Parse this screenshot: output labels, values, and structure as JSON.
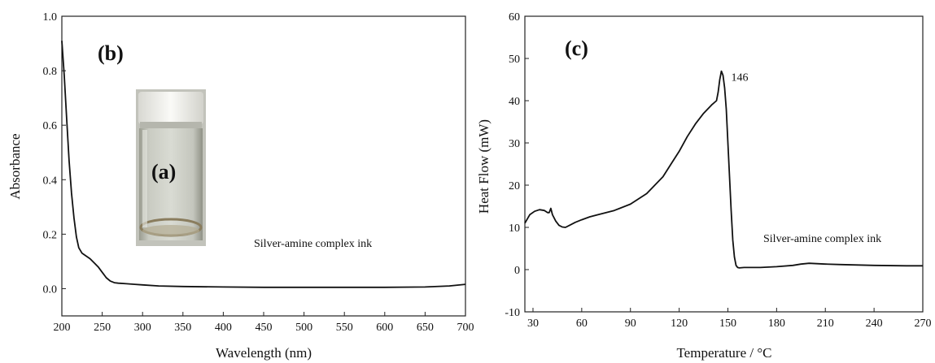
{
  "chart_data": [
    {
      "type": "line",
      "panel_label": "(b)",
      "inset_label": "(a)",
      "xlabel": "Wavelength (nm)",
      "ylabel": "Absorbance",
      "xlim": [
        200,
        700
      ],
      "ylim": [
        -0.1,
        1.0
      ],
      "x_ticks": [
        200,
        250,
        300,
        350,
        400,
        450,
        500,
        550,
        600,
        650,
        700
      ],
      "x_tick_labels": [
        "200",
        "250",
        "300",
        "350",
        "400",
        "450",
        "500",
        "550",
        "600",
        "650",
        "700"
      ],
      "y_ticks": [
        0.0,
        0.2,
        0.4,
        0.6,
        0.8,
        1.0
      ],
      "y_tick_labels": [
        "0.0",
        "0.2",
        "0.4",
        "0.6",
        "0.8",
        "1.0"
      ],
      "annotation": "Silver-amine complex ink",
      "series": [
        {
          "x": [
            200,
            203,
            206,
            209,
            212,
            215,
            218,
            221,
            225,
            230,
            235,
            240,
            245,
            250,
            255,
            260,
            265,
            270,
            280,
            290,
            300,
            320,
            350,
            400,
            450,
            500,
            550,
            600,
            650,
            680,
            700
          ],
          "y": [
            0.91,
            0.78,
            0.62,
            0.47,
            0.35,
            0.26,
            0.19,
            0.15,
            0.13,
            0.12,
            0.11,
            0.095,
            0.08,
            0.06,
            0.04,
            0.028,
            0.022,
            0.02,
            0.018,
            0.016,
            0.014,
            0.01,
            0.008,
            0.006,
            0.005,
            0.005,
            0.005,
            0.005,
            0.006,
            0.01,
            0.016
          ]
        }
      ]
    },
    {
      "type": "line",
      "panel_label": "(c)",
      "xlabel": "Temperature / °C",
      "ylabel": "Heat Flow (mW)",
      "xlim": [
        25,
        270
      ],
      "ylim": [
        -10,
        60
      ],
      "x_ticks": [
        30,
        60,
        90,
        120,
        150,
        180,
        210,
        240,
        270
      ],
      "x_tick_labels": [
        "30",
        "60",
        "90",
        "120",
        "150",
        "180",
        "210",
        "240",
        "270"
      ],
      "y_ticks": [
        -10,
        0,
        10,
        20,
        30,
        40,
        50,
        60
      ],
      "y_tick_labels": [
        "-10",
        "0",
        "10",
        "20",
        "30",
        "40",
        "50",
        "60"
      ],
      "peak_label": "146",
      "peak_x": 146,
      "peak_y": 47,
      "annotation": "Silver-amine complex ink",
      "series": [
        {
          "x": [
            25,
            28,
            31,
            34,
            37,
            39,
            40,
            41,
            42,
            44,
            46,
            48,
            50,
            53,
            56,
            60,
            65,
            70,
            80,
            90,
            100,
            110,
            115,
            120,
            125,
            130,
            135,
            140,
            143,
            144,
            145,
            146,
            147,
            148,
            149,
            150,
            151,
            152,
            153,
            154,
            155,
            156,
            157,
            160,
            170,
            180,
            190,
            195,
            200,
            210,
            220,
            240,
            260,
            270
          ],
          "y": [
            11.0,
            13.0,
            13.8,
            14.2,
            14.0,
            13.5,
            13.5,
            14.5,
            13.0,
            11.5,
            10.5,
            10.1,
            10.0,
            10.6,
            11.2,
            11.8,
            12.5,
            13.0,
            14.0,
            15.5,
            18.0,
            22.0,
            25.0,
            28.0,
            31.5,
            34.5,
            37.0,
            39.0,
            40.0,
            42.0,
            45.0,
            47.0,
            46.0,
            43.0,
            38.0,
            30.0,
            22.0,
            14.0,
            7.0,
            3.0,
            1.0,
            0.5,
            0.4,
            0.5,
            0.5,
            0.7,
            1.0,
            1.3,
            1.5,
            1.3,
            1.2,
            1.0,
            0.9,
            0.9
          ]
        }
      ]
    }
  ]
}
